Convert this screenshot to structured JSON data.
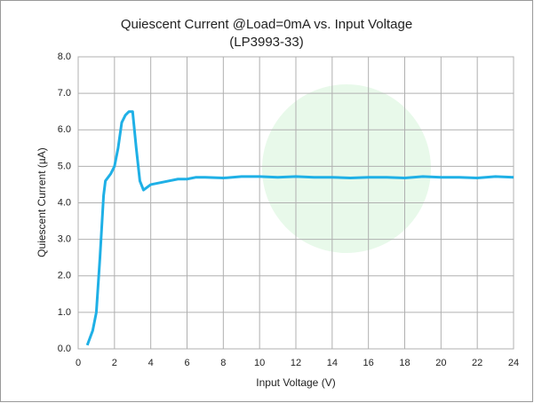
{
  "chart_data": {
    "type": "line",
    "title": "Quiescent Current @Load=0mA vs. Input Voltage",
    "subtitle": "(LP3993-33)",
    "x_label": "Input Voltage (V)",
    "y_label": "Quiescent Current (µA)",
    "x": [
      0.5,
      0.8,
      1.0,
      1.2,
      1.4,
      1.5,
      1.8,
      2.0,
      2.2,
      2.4,
      2.6,
      2.8,
      3.0,
      3.2,
      3.4,
      3.6,
      4,
      5,
      5.5,
      6,
      6.5,
      7,
      8,
      9,
      10,
      11,
      12,
      13,
      14,
      15,
      16,
      17,
      18,
      19,
      20,
      21,
      22,
      23,
      24
    ],
    "values": [
      0.1,
      0.5,
      1.0,
      2.5,
      4.2,
      4.6,
      4.8,
      5.0,
      5.5,
      6.2,
      6.4,
      6.5,
      6.5,
      5.5,
      4.6,
      4.35,
      4.5,
      4.6,
      4.65,
      4.65,
      4.7,
      4.7,
      4.68,
      4.72,
      4.72,
      4.7,
      4.72,
      4.7,
      4.7,
      4.68,
      4.7,
      4.7,
      4.68,
      4.72,
      4.7,
      4.7,
      4.68,
      4.72,
      4.7
    ],
    "color": "#1fb0e6",
    "xlim": [
      0,
      24
    ],
    "xticks": [
      0,
      2,
      4,
      6,
      8,
      10,
      12,
      14,
      16,
      18,
      20,
      22,
      24
    ],
    "ylim": [
      0,
      8
    ],
    "yticks": [
      {
        "value": 0,
        "label": "0.0"
      },
      {
        "value": 1,
        "label": "1.0"
      },
      {
        "value": 2,
        "label": "2.0"
      },
      {
        "value": 3,
        "label": "3.0"
      },
      {
        "value": 4,
        "label": "4.0"
      },
      {
        "value": 5,
        "label": "5.0"
      },
      {
        "value": 6,
        "label": "6.0"
      },
      {
        "value": 7,
        "label": "7.0"
      },
      {
        "value": 8,
        "label": "8.0"
      }
    ],
    "grid": true
  }
}
